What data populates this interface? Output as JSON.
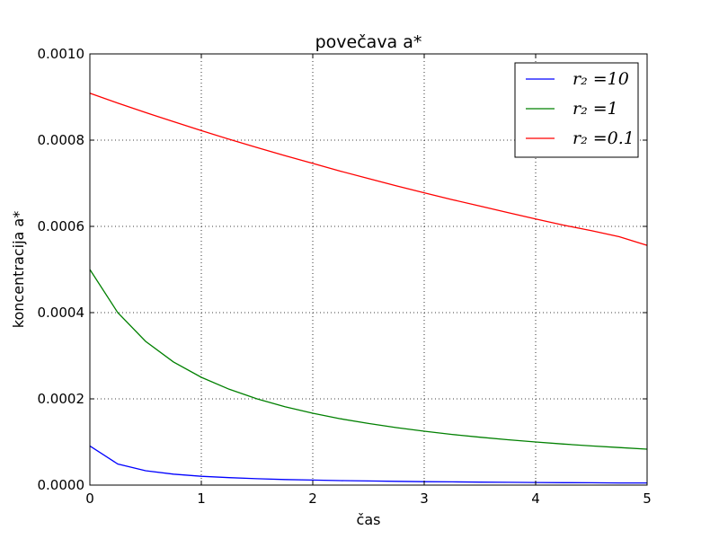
{
  "chart_data": {
    "type": "line",
    "title": "povečava a*",
    "xlabel": "čas",
    "ylabel": "koncentracija a*",
    "xlim": [
      0,
      5
    ],
    "ylim": [
      0,
      0.001
    ],
    "xticks": [
      0,
      1,
      2,
      3,
      4,
      5
    ],
    "xtick_labels": [
      "0",
      "1",
      "2",
      "3",
      "4",
      "5"
    ],
    "yticks": [
      0,
      0.0002,
      0.0004,
      0.0006,
      0.0008,
      0.001
    ],
    "ytick_labels": [
      "0.0000",
      "0.0002",
      "0.0004",
      "0.0006",
      "0.0008",
      "0.0010"
    ],
    "grid": true,
    "legend_position": "top-right",
    "x": [
      0,
      0.25,
      0.5,
      0.75,
      1,
      1.25,
      1.5,
      1.75,
      2,
      2.25,
      2.5,
      2.75,
      3,
      3.25,
      3.5,
      3.75,
      4,
      4.25,
      4.5,
      4.75,
      5
    ],
    "series": [
      {
        "name": "r₂ =10",
        "color": "#0000ff",
        "values": [
          9.09e-05,
          4.89e-05,
          3.34e-05,
          2.54e-05,
          2.05e-05,
          1.72e-05,
          1.48e-05,
          1.3e-05,
          1.16e-05,
          1.04e-05,
          9.5e-06,
          8.7e-06,
          8e-06,
          7.4e-06,
          6.9e-06,
          6.5e-06,
          6.1e-06,
          5.7e-06,
          5.4e-06,
          5.1e-06,
          4.9e-06
        ]
      },
      {
        "name": "r₂ =1",
        "color": "#008000",
        "values": [
          0.0005,
          0.0004,
          0.0003333,
          0.0002857,
          0.00025,
          0.0002222,
          0.0002,
          0.0001818,
          0.0001667,
          0.0001538,
          0.0001429,
          0.0001333,
          0.000125,
          0.0001176,
          0.0001111,
          0.0001053,
          0.0001,
          9.52e-05,
          9.09e-05,
          8.7e-05,
          8.33e-05
        ]
      },
      {
        "name": "r₂ =0.1",
        "color": "#ff0000",
        "values": [
          0.000909,
          0.000886,
          0.000864,
          0.000843,
          0.000822,
          0.000802,
          0.000783,
          0.000764,
          0.000746,
          0.000728,
          0.000711,
          0.000694,
          0.000678,
          0.000662,
          0.000647,
          0.000632,
          0.000617,
          0.000603,
          0.00059,
          0.000576,
          0.000556
        ]
      }
    ]
  }
}
